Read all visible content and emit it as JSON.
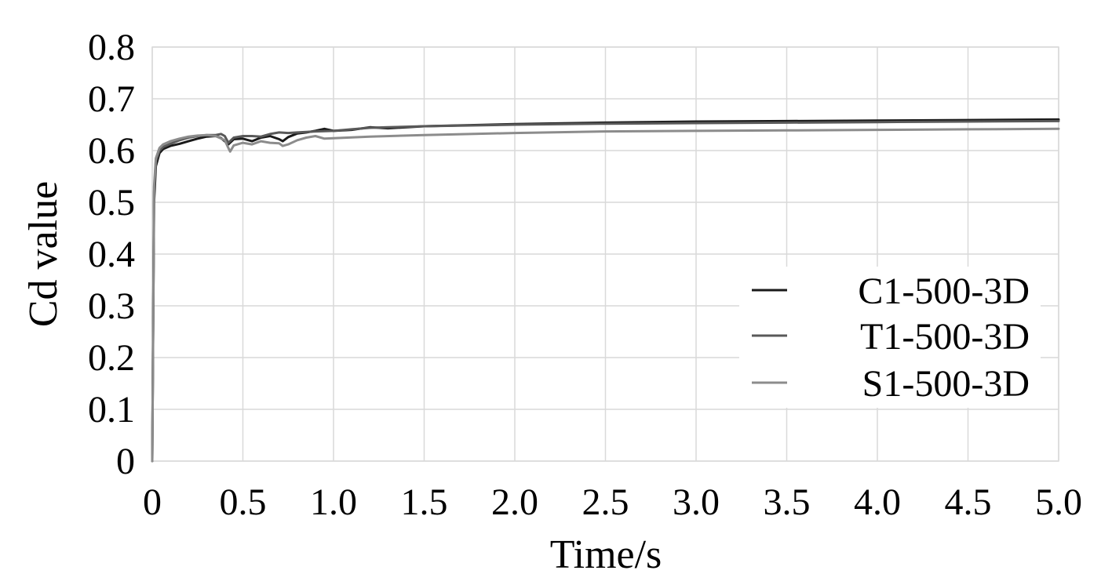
{
  "chart_data": {
    "type": "line",
    "title": "",
    "xlabel": "Time/s",
    "ylabel": "Cd value",
    "xlim": [
      0,
      5
    ],
    "ylim": [
      0,
      0.8
    ],
    "x_ticks": [
      "0",
      "0.5",
      "1.0",
      "1.5",
      "2.0",
      "2.5",
      "3.0",
      "3.5",
      "4.0",
      "4.5",
      "5.0"
    ],
    "y_ticks": [
      "0",
      "0.1",
      "0.2",
      "0.3",
      "0.4",
      "0.5",
      "0.6",
      "0.7",
      "0.8"
    ],
    "grid": true,
    "legend_position": "right",
    "series": [
      {
        "name": "C1-500-3D",
        "color": "#1a1a1a",
        "points": [
          [
            0,
            0
          ],
          [
            0.01,
            0.5
          ],
          [
            0.02,
            0.57
          ],
          [
            0.04,
            0.595
          ],
          [
            0.06,
            0.603
          ],
          [
            0.1,
            0.609
          ],
          [
            0.15,
            0.613
          ],
          [
            0.2,
            0.618
          ],
          [
            0.25,
            0.623
          ],
          [
            0.3,
            0.627
          ],
          [
            0.35,
            0.628
          ],
          [
            0.38,
            0.624
          ],
          [
            0.4,
            0.618
          ],
          [
            0.42,
            0.612
          ],
          [
            0.45,
            0.622
          ],
          [
            0.5,
            0.623
          ],
          [
            0.55,
            0.618
          ],
          [
            0.6,
            0.625
          ],
          [
            0.65,
            0.628
          ],
          [
            0.7,
            0.622
          ],
          [
            0.72,
            0.618
          ],
          [
            0.75,
            0.626
          ],
          [
            0.8,
            0.633
          ],
          [
            0.85,
            0.635
          ],
          [
            0.9,
            0.638
          ],
          [
            0.95,
            0.642
          ],
          [
            1.0,
            0.638
          ],
          [
            1.1,
            0.64
          ],
          [
            1.2,
            0.645
          ],
          [
            1.3,
            0.643
          ],
          [
            1.5,
            0.647
          ],
          [
            2.0,
            0.651
          ],
          [
            2.5,
            0.654
          ],
          [
            3.0,
            0.656
          ],
          [
            3.5,
            0.657
          ],
          [
            4.0,
            0.658
          ],
          [
            4.5,
            0.659
          ],
          [
            5.0,
            0.66
          ]
        ]
      },
      {
        "name": "T1-500-3D",
        "color": "#595959",
        "points": [
          [
            0,
            0
          ],
          [
            0.01,
            0.52
          ],
          [
            0.02,
            0.58
          ],
          [
            0.04,
            0.6
          ],
          [
            0.06,
            0.607
          ],
          [
            0.1,
            0.613
          ],
          [
            0.15,
            0.62
          ],
          [
            0.2,
            0.625
          ],
          [
            0.25,
            0.628
          ],
          [
            0.3,
            0.63
          ],
          [
            0.35,
            0.63
          ],
          [
            0.38,
            0.632
          ],
          [
            0.4,
            0.628
          ],
          [
            0.42,
            0.615
          ],
          [
            0.45,
            0.625
          ],
          [
            0.5,
            0.628
          ],
          [
            0.55,
            0.628
          ],
          [
            0.6,
            0.627
          ],
          [
            0.65,
            0.632
          ],
          [
            0.7,
            0.635
          ],
          [
            0.75,
            0.634
          ],
          [
            0.8,
            0.635
          ],
          [
            0.9,
            0.637
          ],
          [
            1.0,
            0.638
          ],
          [
            1.1,
            0.641
          ],
          [
            1.2,
            0.644
          ],
          [
            1.3,
            0.645
          ],
          [
            1.5,
            0.647
          ],
          [
            2.0,
            0.65
          ],
          [
            2.5,
            0.652
          ],
          [
            3.0,
            0.653
          ],
          [
            3.5,
            0.654
          ],
          [
            4.0,
            0.655
          ],
          [
            4.5,
            0.656
          ],
          [
            5.0,
            0.657
          ]
        ]
      },
      {
        "name": "S1-500-3D",
        "color": "#8c8c8c",
        "points": [
          [
            0,
            0
          ],
          [
            0.01,
            0.53
          ],
          [
            0.02,
            0.585
          ],
          [
            0.04,
            0.605
          ],
          [
            0.06,
            0.612
          ],
          [
            0.1,
            0.618
          ],
          [
            0.15,
            0.623
          ],
          [
            0.2,
            0.627
          ],
          [
            0.25,
            0.629
          ],
          [
            0.3,
            0.63
          ],
          [
            0.35,
            0.628
          ],
          [
            0.4,
            0.62
          ],
          [
            0.42,
            0.605
          ],
          [
            0.43,
            0.598
          ],
          [
            0.45,
            0.61
          ],
          [
            0.5,
            0.615
          ],
          [
            0.55,
            0.612
          ],
          [
            0.6,
            0.618
          ],
          [
            0.65,
            0.615
          ],
          [
            0.7,
            0.614
          ],
          [
            0.72,
            0.609
          ],
          [
            0.75,
            0.612
          ],
          [
            0.8,
            0.62
          ],
          [
            0.85,
            0.625
          ],
          [
            0.9,
            0.628
          ],
          [
            0.95,
            0.623
          ],
          [
            1.0,
            0.624
          ],
          [
            1.2,
            0.627
          ],
          [
            1.5,
            0.63
          ],
          [
            2.0,
            0.634
          ],
          [
            2.5,
            0.637
          ],
          [
            3.0,
            0.638
          ],
          [
            3.5,
            0.639
          ],
          [
            4.0,
            0.64
          ],
          [
            4.5,
            0.641
          ],
          [
            5.0,
            0.642
          ]
        ]
      }
    ]
  }
}
